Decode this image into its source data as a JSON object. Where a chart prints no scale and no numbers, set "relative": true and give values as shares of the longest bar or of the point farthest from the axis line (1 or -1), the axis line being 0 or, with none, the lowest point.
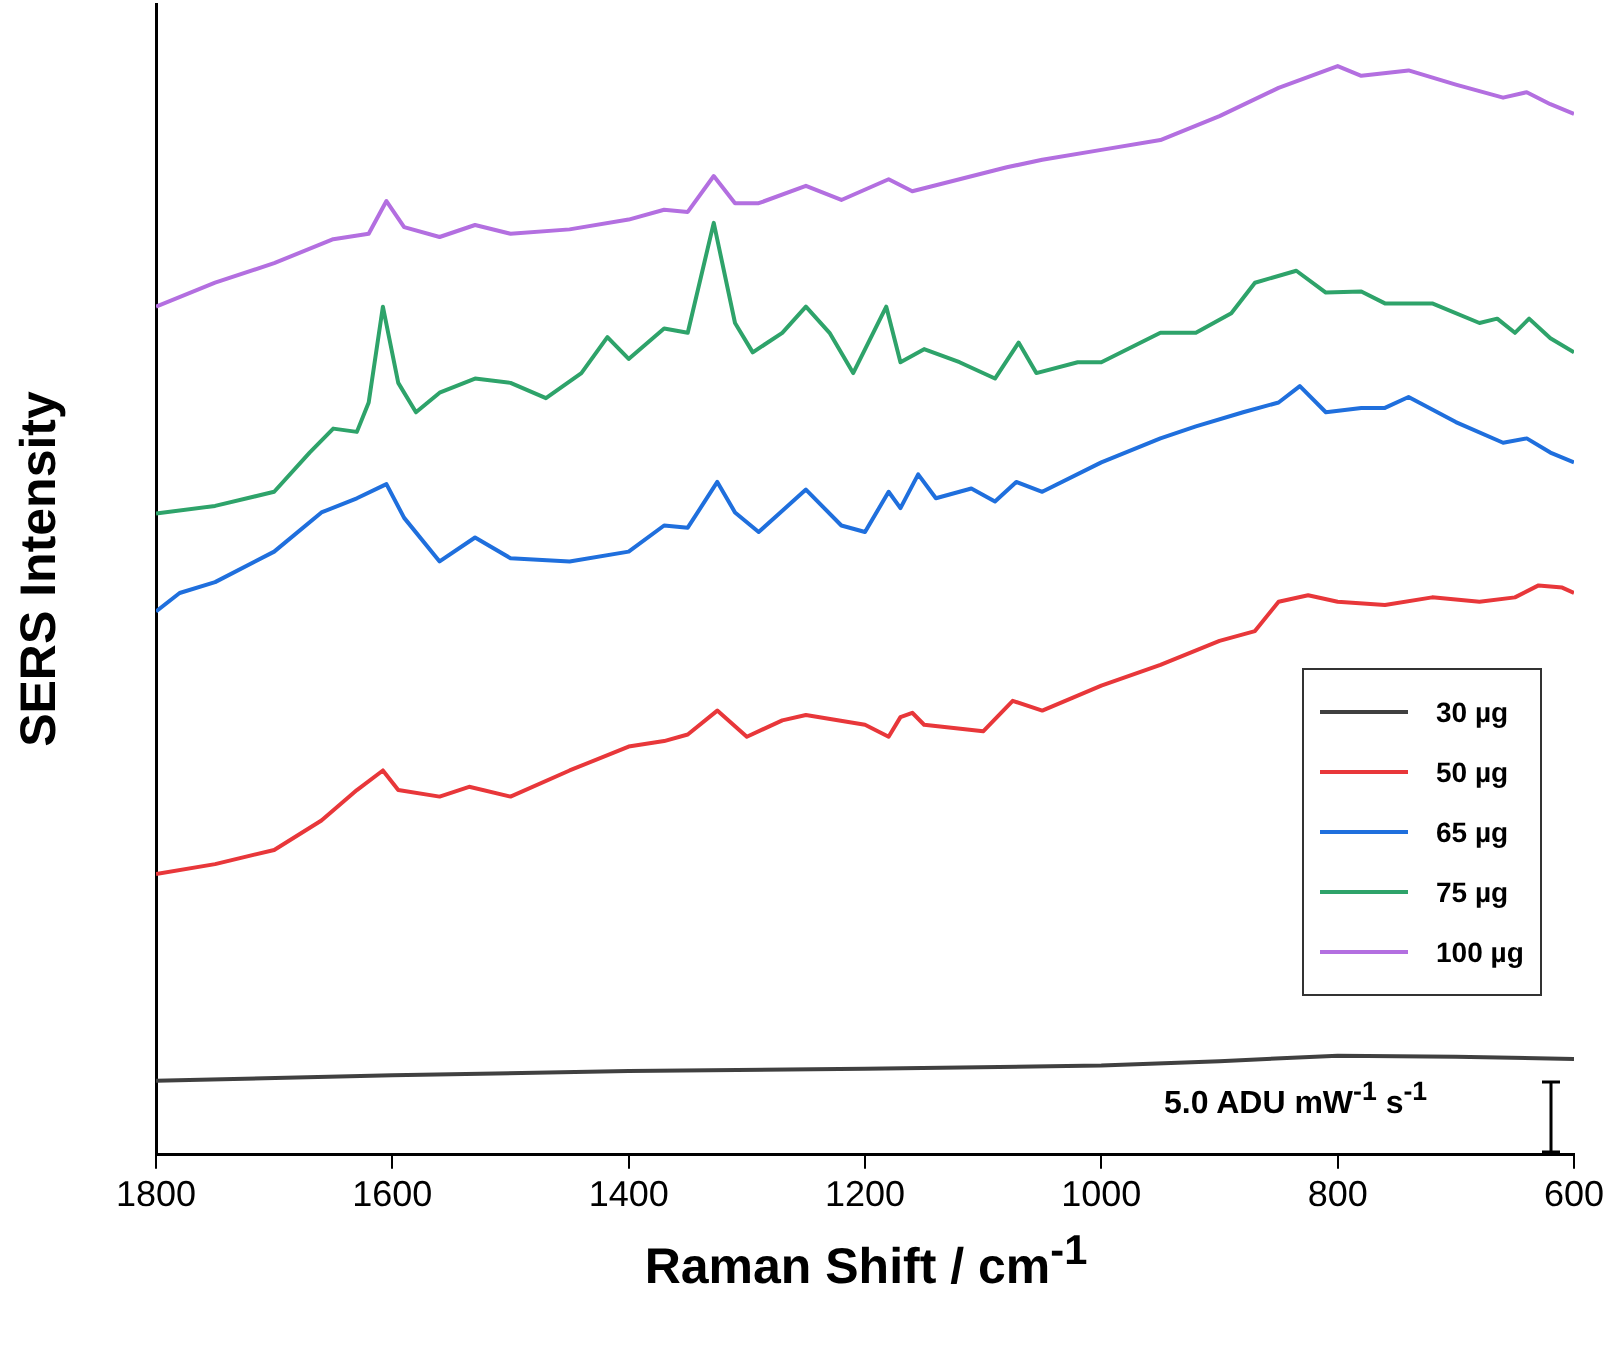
{
  "chart_data": {
    "type": "line",
    "relative": true,
    "xlabel": "Raman Shift / cm$^{-1}$",
    "ylabel": "SERS Intensity",
    "xlim": [
      1800,
      600
    ],
    "xticks": [
      1800,
      1600,
      1400,
      1200,
      1000,
      800,
      600
    ],
    "legend": "right",
    "grid": false,
    "marker": "none",
    "line_style": "solid",
    "annotations": [
      "5.0 ADU mW$^{-1}$ s$^{-1}$"
    ],
    "series": [
      {
        "name": "30 µg",
        "color": "#404040",
        "x": [
          1800,
          1600,
          1400,
          1200,
          1000,
          900,
          800,
          700,
          600
        ],
        "values": [
          0.068,
          0.073,
          0.077,
          0.079,
          0.082,
          0.086,
          0.091,
          0.09,
          0.088
        ]
      },
      {
        "name": "50 µg",
        "color": "#e8373a",
        "x": [
          1800,
          1750,
          1700,
          1660,
          1630,
          1608,
          1595,
          1560,
          1535,
          1500,
          1450,
          1400,
          1370,
          1350,
          1325,
          1300,
          1270,
          1250,
          1200,
          1180,
          1170,
          1160,
          1150,
          1100,
          1075,
          1050,
          1000,
          950,
          900,
          870,
          850,
          825,
          800,
          760,
          720,
          680,
          650,
          630,
          610,
          600
        ],
        "values": [
          0.258,
          0.267,
          0.28,
          0.307,
          0.335,
          0.353,
          0.335,
          0.329,
          0.338,
          0.329,
          0.353,
          0.375,
          0.38,
          0.386,
          0.408,
          0.384,
          0.399,
          0.404,
          0.395,
          0.384,
          0.402,
          0.406,
          0.395,
          0.389,
          0.417,
          0.408,
          0.431,
          0.45,
          0.472,
          0.481,
          0.508,
          0.514,
          0.508,
          0.505,
          0.512,
          0.508,
          0.512,
          0.523,
          0.521,
          0.516
        ]
      },
      {
        "name": "65 µg",
        "color": "#1f6fdd",
        "x": [
          1800,
          1780,
          1750,
          1700,
          1660,
          1630,
          1605,
          1590,
          1560,
          1530,
          1500,
          1450,
          1400,
          1370,
          1350,
          1325,
          1310,
          1290,
          1250,
          1220,
          1200,
          1180,
          1170,
          1155,
          1140,
          1110,
          1090,
          1072,
          1050,
          1000,
          950,
          920,
          880,
          850,
          832,
          810,
          780,
          760,
          740,
          700,
          660,
          640,
          620,
          600
        ],
        "values": [
          0.499,
          0.516,
          0.526,
          0.554,
          0.59,
          0.603,
          0.616,
          0.585,
          0.545,
          0.567,
          0.548,
          0.545,
          0.554,
          0.578,
          0.576,
          0.618,
          0.59,
          0.572,
          0.611,
          0.578,
          0.572,
          0.609,
          0.594,
          0.625,
          0.603,
          0.612,
          0.6,
          0.618,
          0.609,
          0.636,
          0.658,
          0.669,
          0.682,
          0.691,
          0.706,
          0.682,
          0.686,
          0.686,
          0.696,
          0.673,
          0.654,
          0.658,
          0.645,
          0.636
        ]
      },
      {
        "name": "75 µg",
        "color": "#2ea36a",
        "x": [
          1800,
          1750,
          1700,
          1670,
          1650,
          1630,
          1620,
          1608,
          1595,
          1580,
          1560,
          1530,
          1500,
          1470,
          1440,
          1418,
          1400,
          1370,
          1350,
          1328,
          1310,
          1295,
          1270,
          1250,
          1230,
          1210,
          1182,
          1170,
          1150,
          1120,
          1090,
          1070,
          1055,
          1020,
          1000,
          950,
          920,
          890,
          870,
          835,
          810,
          780,
          760,
          720,
          680,
          665,
          650,
          638,
          620,
          600
        ],
        "values": [
          0.589,
          0.596,
          0.609,
          0.645,
          0.667,
          0.664,
          0.691,
          0.779,
          0.709,
          0.682,
          0.7,
          0.713,
          0.709,
          0.695,
          0.718,
          0.751,
          0.731,
          0.759,
          0.755,
          0.856,
          0.764,
          0.737,
          0.755,
          0.779,
          0.755,
          0.718,
          0.779,
          0.728,
          0.74,
          0.728,
          0.713,
          0.746,
          0.718,
          0.728,
          0.728,
          0.755,
          0.755,
          0.773,
          0.801,
          0.812,
          0.792,
          0.793,
          0.782,
          0.782,
          0.764,
          0.768,
          0.755,
          0.768,
          0.75,
          0.737
        ]
      },
      {
        "name": "100 µg",
        "color": "#b36fe0",
        "x": [
          1800,
          1750,
          1700,
          1650,
          1620,
          1605,
          1590,
          1560,
          1530,
          1500,
          1450,
          1400,
          1370,
          1350,
          1328,
          1310,
          1290,
          1250,
          1220,
          1180,
          1160,
          1120,
          1080,
          1050,
          1000,
          950,
          900,
          850,
          800,
          780,
          740,
          700,
          660,
          640,
          620,
          600
        ],
        "values": [
          0.779,
          0.801,
          0.819,
          0.841,
          0.846,
          0.876,
          0.852,
          0.843,
          0.854,
          0.846,
          0.85,
          0.859,
          0.868,
          0.866,
          0.899,
          0.874,
          0.874,
          0.89,
          0.877,
          0.896,
          0.885,
          0.896,
          0.907,
          0.914,
          0.923,
          0.932,
          0.954,
          0.98,
          1,
          0.991,
          0.996,
          0.983,
          0.971,
          0.976,
          0.965,
          0.956
        ]
      }
    ]
  }
}
